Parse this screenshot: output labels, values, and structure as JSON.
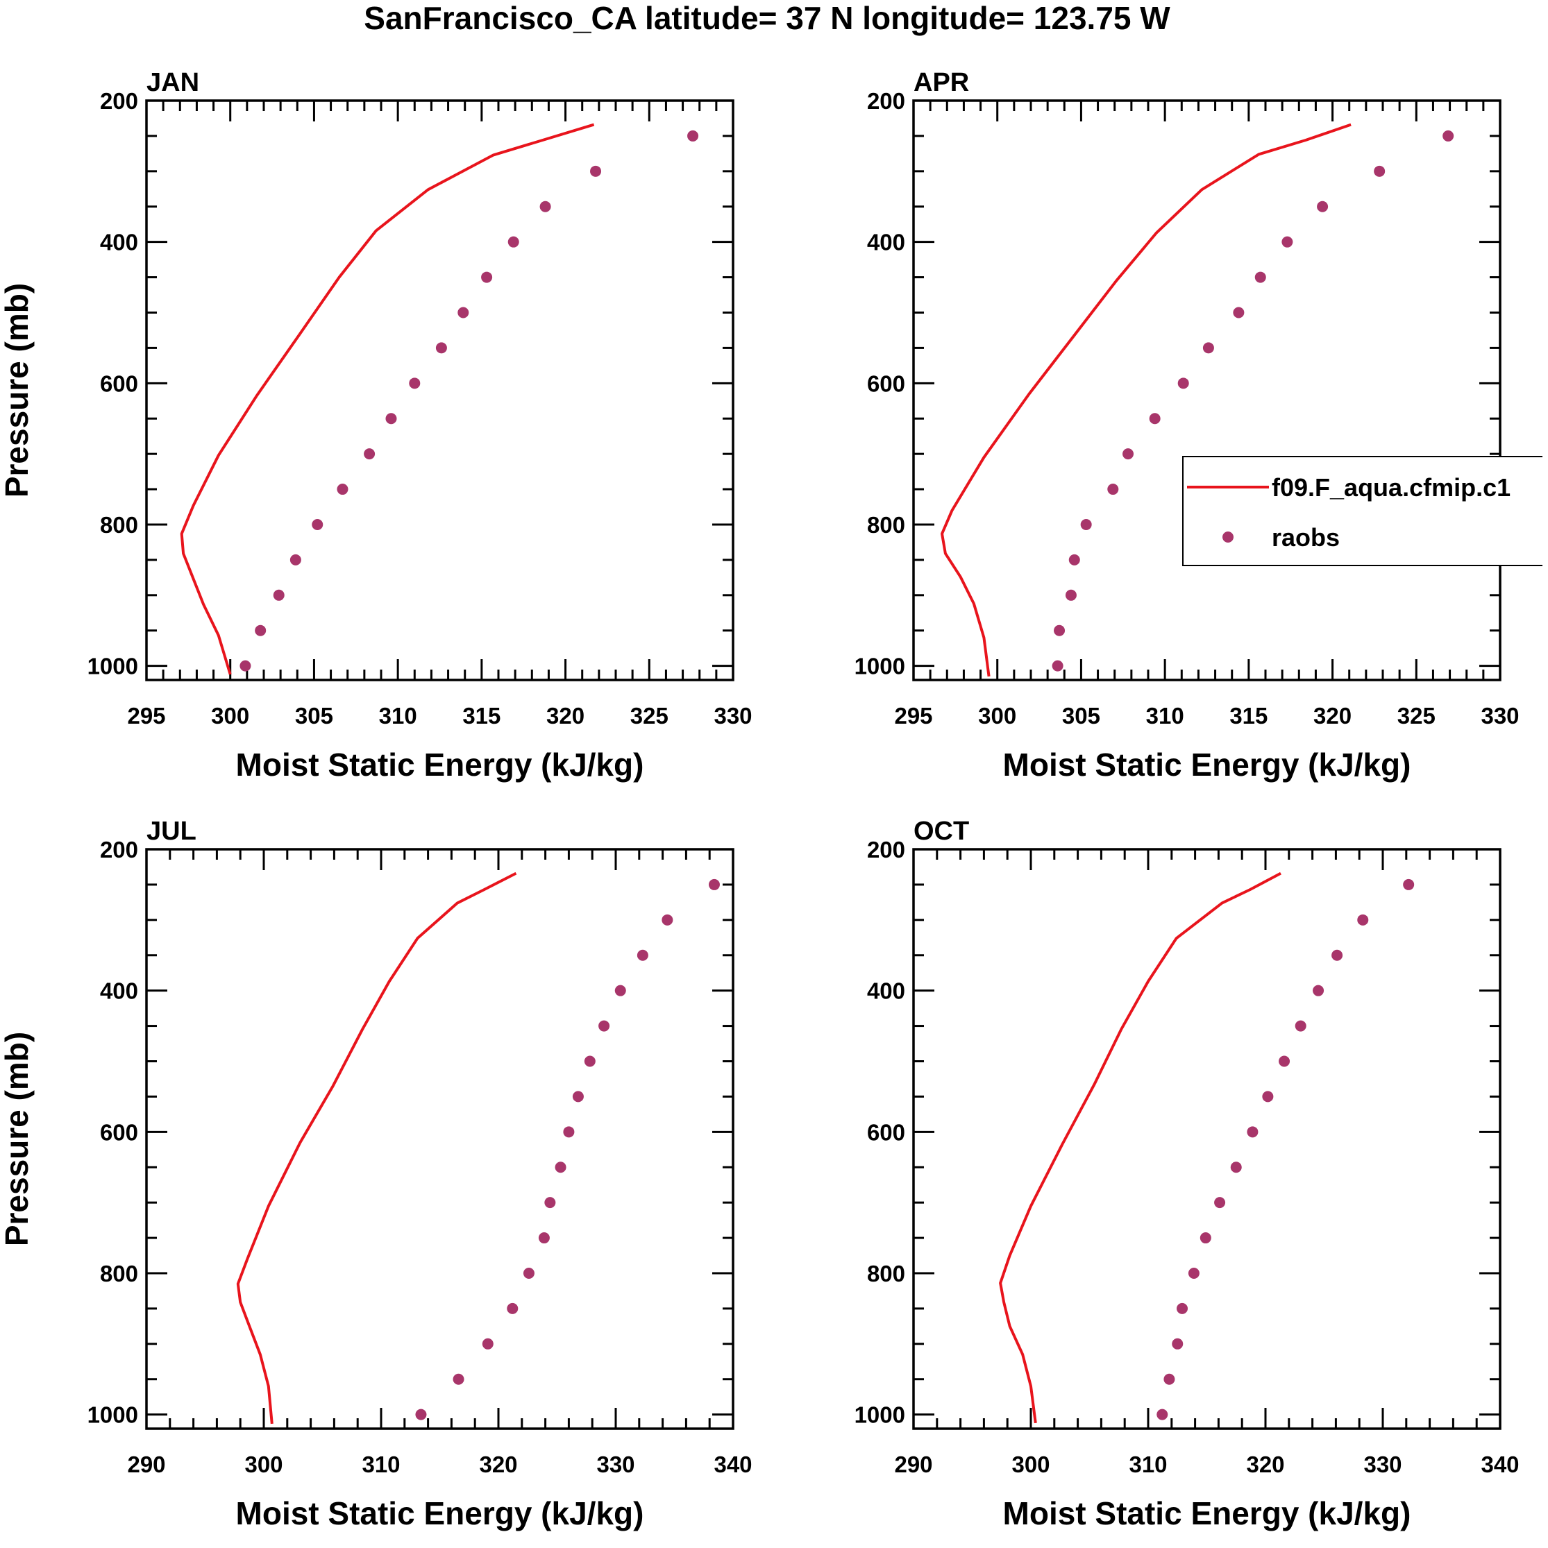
{
  "title": "SanFrancisco_CA  latitude= 37 N longitude= 123.75 W",
  "colors": {
    "model": "#e8141c",
    "obs": "#a8356a",
    "frame": "#000000"
  },
  "legend": {
    "entries": [
      {
        "label": "f09.F_aqua.cfmip.c1",
        "kind": "line"
      },
      {
        "label": "raobs",
        "kind": "marker"
      }
    ]
  },
  "chart_data": [
    {
      "type": "line",
      "title": "JAN",
      "xlabel": "Moist Static Energy (kJ/kg)",
      "ylabel": "Pressure (mb)",
      "xlim": [
        295,
        330
      ],
      "xticks": [
        295,
        300,
        305,
        310,
        315,
        320,
        325,
        330
      ],
      "ylim": [
        200,
        1020
      ],
      "yticks": [
        200,
        400,
        600,
        800,
        1000
      ],
      "y_reversed": true,
      "series": [
        {
          "name": "f09.F_aqua.cfmip.c1",
          "kind": "line",
          "x": [
            300.0,
            299.3,
            298.4,
            297.8,
            297.2,
            297.1,
            297.8,
            299.3,
            301.6,
            304.1,
            306.5,
            308.7,
            311.8,
            315.7,
            318.5,
            321.7
          ],
          "y": [
            1012,
            957,
            913,
            877,
            841,
            813,
            773,
            702,
            617,
            532,
            450,
            384,
            326,
            277,
            257,
            234
          ]
        },
        {
          "name": "raobs",
          "kind": "scatter",
          "x": [
            300.9,
            301.8,
            302.9,
            303.9,
            305.2,
            306.7,
            308.3,
            309.6,
            311.0,
            312.6,
            313.9,
            315.3,
            316.9,
            318.8,
            321.8,
            327.6
          ],
          "y": [
            1000,
            950,
            900,
            850,
            800,
            750,
            700,
            650,
            600,
            550,
            500,
            450,
            400,
            350,
            300,
            250
          ]
        }
      ]
    },
    {
      "type": "line",
      "title": "APR",
      "xlabel": "Moist Static Energy (kJ/kg)",
      "ylabel": "",
      "xlim": [
        295,
        330
      ],
      "xticks": [
        295,
        300,
        305,
        310,
        315,
        320,
        325,
        330
      ],
      "ylim": [
        200,
        1020
      ],
      "yticks": [
        200,
        400,
        600,
        800,
        1000
      ],
      "y_reversed": true,
      "series": [
        {
          "name": "f09.F_aqua.cfmip.c1",
          "kind": "line",
          "x": [
            299.5,
            299.2,
            298.6,
            297.8,
            296.9,
            296.7,
            297.3,
            299.2,
            301.9,
            304.5,
            307.1,
            309.5,
            312.2,
            315.6,
            318.4,
            321.1
          ],
          "y": [
            1015,
            960,
            912,
            874,
            841,
            813,
            780,
            705,
            615,
            535,
            455,
            387,
            326,
            276,
            256,
            234
          ]
        },
        {
          "name": "raobs",
          "kind": "scatter",
          "x": [
            303.6,
            303.7,
            304.4,
            304.6,
            305.3,
            306.9,
            307.8,
            309.4,
            311.1,
            312.6,
            314.4,
            315.7,
            317.3,
            319.4,
            322.8,
            326.9
          ],
          "y": [
            1000,
            950,
            900,
            850,
            800,
            750,
            700,
            650,
            600,
            550,
            500,
            450,
            400,
            350,
            300,
            250
          ]
        }
      ]
    },
    {
      "type": "line",
      "title": "JUL",
      "xlabel": "Moist Static Energy (kJ/kg)",
      "ylabel": "Pressure (mb)",
      "xlim": [
        290,
        340
      ],
      "xticks": [
        290,
        300,
        310,
        320,
        330,
        340
      ],
      "ylim": [
        200,
        1020
      ],
      "yticks": [
        200,
        400,
        600,
        800,
        1000
      ],
      "y_reversed": true,
      "series": [
        {
          "name": "f09.F_aqua.cfmip.c1",
          "kind": "line",
          "x": [
            300.7,
            300.4,
            299.7,
            298.8,
            298.0,
            297.8,
            298.6,
            300.4,
            303.1,
            305.9,
            308.4,
            310.7,
            313.1,
            316.5,
            318.8,
            321.5
          ],
          "y": [
            1013,
            960,
            915,
            876,
            841,
            815,
            780,
            705,
            615,
            535,
            455,
            387,
            326,
            276,
            257,
            234
          ]
        },
        {
          "name": "raobs",
          "kind": "scatter",
          "x": [
            313.4,
            316.6,
            319.1,
            321.2,
            322.6,
            323.9,
            324.4,
            325.3,
            326.0,
            326.8,
            327.8,
            329.0,
            330.4,
            332.3,
            334.4,
            338.4
          ],
          "y": [
            1000,
            950,
            900,
            850,
            800,
            750,
            700,
            650,
            600,
            550,
            500,
            450,
            400,
            350,
            300,
            250
          ]
        }
      ]
    },
    {
      "type": "line",
      "title": "OCT",
      "xlabel": "Moist Static Energy (kJ/kg)",
      "ylabel": "",
      "xlim": [
        290,
        340
      ],
      "xticks": [
        290,
        300,
        310,
        320,
        330,
        340
      ],
      "ylim": [
        200,
        1020
      ],
      "yticks": [
        200,
        400,
        600,
        800,
        1000
      ],
      "y_reversed": true,
      "series": [
        {
          "name": "f09.F_aqua.cfmip.c1",
          "kind": "line",
          "x": [
            300.4,
            300.0,
            299.3,
            298.2,
            297.7,
            297.4,
            298.2,
            300.0,
            302.7,
            305.4,
            307.7,
            310.0,
            312.4,
            316.3,
            318.7,
            321.3
          ],
          "y": [
            1012,
            960,
            915,
            875,
            841,
            814,
            775,
            705,
            617,
            533,
            455,
            387,
            326,
            276,
            257,
            234
          ]
        },
        {
          "name": "raobs",
          "kind": "scatter",
          "x": [
            311.2,
            311.8,
            312.5,
            312.9,
            313.9,
            314.9,
            316.1,
            317.5,
            318.9,
            320.2,
            321.6,
            323.0,
            324.5,
            326.1,
            328.3,
            332.2
          ],
          "y": [
            1000,
            950,
            900,
            850,
            800,
            750,
            700,
            650,
            600,
            550,
            500,
            450,
            400,
            350,
            300,
            250
          ]
        }
      ]
    }
  ]
}
